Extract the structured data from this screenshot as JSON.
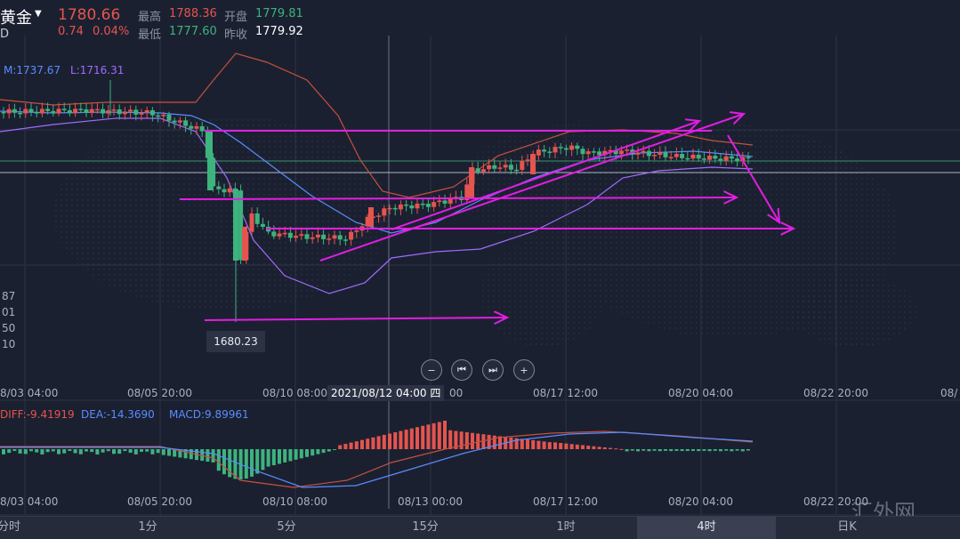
{
  "header": {
    "title": "黄金",
    "subtitle": "D",
    "price": "1780.66",
    "change": "0.74",
    "change_pct": "0.04%",
    "high_label": "最高",
    "high": "1788.36",
    "open_label": "开盘",
    "open": "1779.81",
    "low_label": "最低",
    "low": "1777.60",
    "prev_close_label": "昨收",
    "prev_close": "1779.92"
  },
  "bollinger": {
    "mid": "M:1737.67",
    "lower": "L:1716.31"
  },
  "price_axis": [
    "87",
    "01",
    "50",
    "10"
  ],
  "low_marker": "1680.23",
  "controls": {
    "zoom_out": "−",
    "prev": "⏮",
    "next": "⏭",
    "zoom_in": "+"
  },
  "time_axis": [
    "8/03 04:00",
    "08/05 20:00",
    "08/10 08:00",
    "08/17 12:00",
    "08/20 04:00",
    "08/22 20:00",
    "08/"
  ],
  "crosshair_date": "2021/08/12 04:00 四",
  "crosshair_tail": "00",
  "macd": {
    "dif": "DIFF:-9.41919",
    "dea": "DEA:-14.3690",
    "macd": "MACD:9.89961"
  },
  "macd_axis": [
    "8/03 04:00",
    "08/05 20:00",
    "08/10 08:00",
    "08/13 00:00",
    "08/17 12:00",
    "08/20 04:00",
    "08/22 20:00"
  ],
  "timeframes": [
    "分时",
    "1分",
    "5分",
    "15分",
    "1时",
    "4时",
    "日K"
  ],
  "active_timeframe": "4时",
  "watermark": "汇外网",
  "colors": {
    "up": "#e5544f",
    "down": "#3db37e",
    "annotation": "#e21ee3",
    "bg": "#1b2030"
  }
}
